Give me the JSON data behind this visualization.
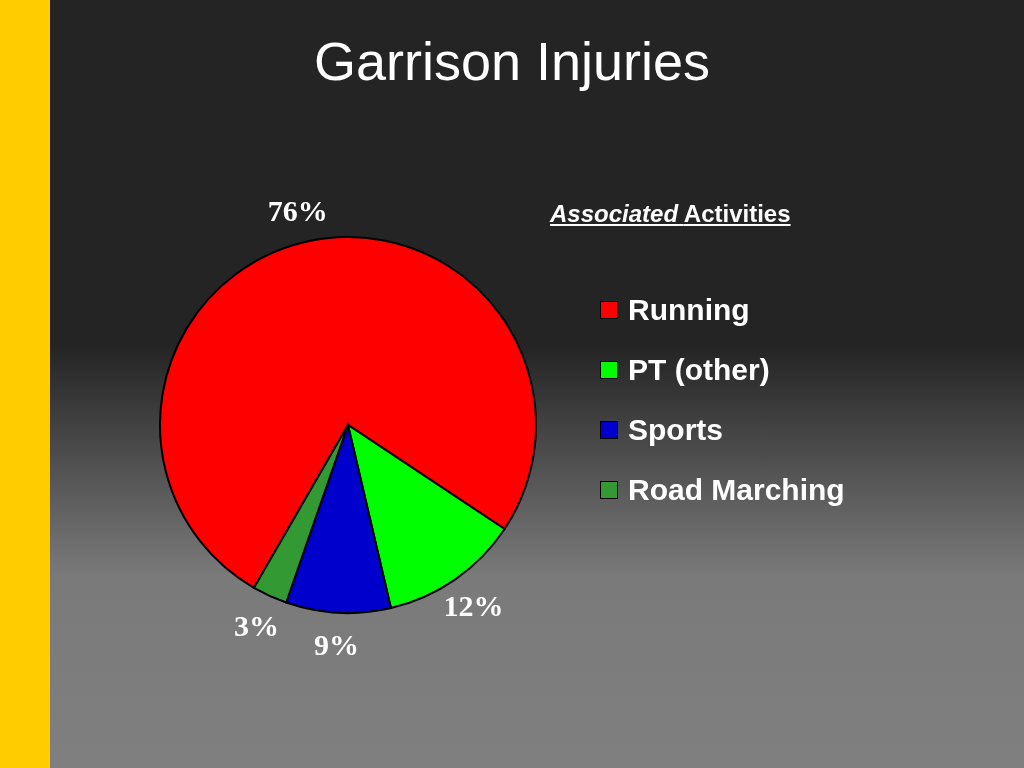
{
  "chart_data": {
    "type": "pie",
    "title": "Garrison Injuries",
    "legend_title": "Associated Activities",
    "categories": [
      "Running",
      "PT (other)",
      "Sports",
      "Road Marching"
    ],
    "values": [
      76,
      12,
      9,
      3
    ],
    "colors": [
      "#ff0000",
      "#00ff00",
      "#0000cc",
      "#339933"
    ],
    "value_labels": [
      "76%",
      "12%",
      "9%",
      "3%"
    ],
    "legend": "right"
  }
}
